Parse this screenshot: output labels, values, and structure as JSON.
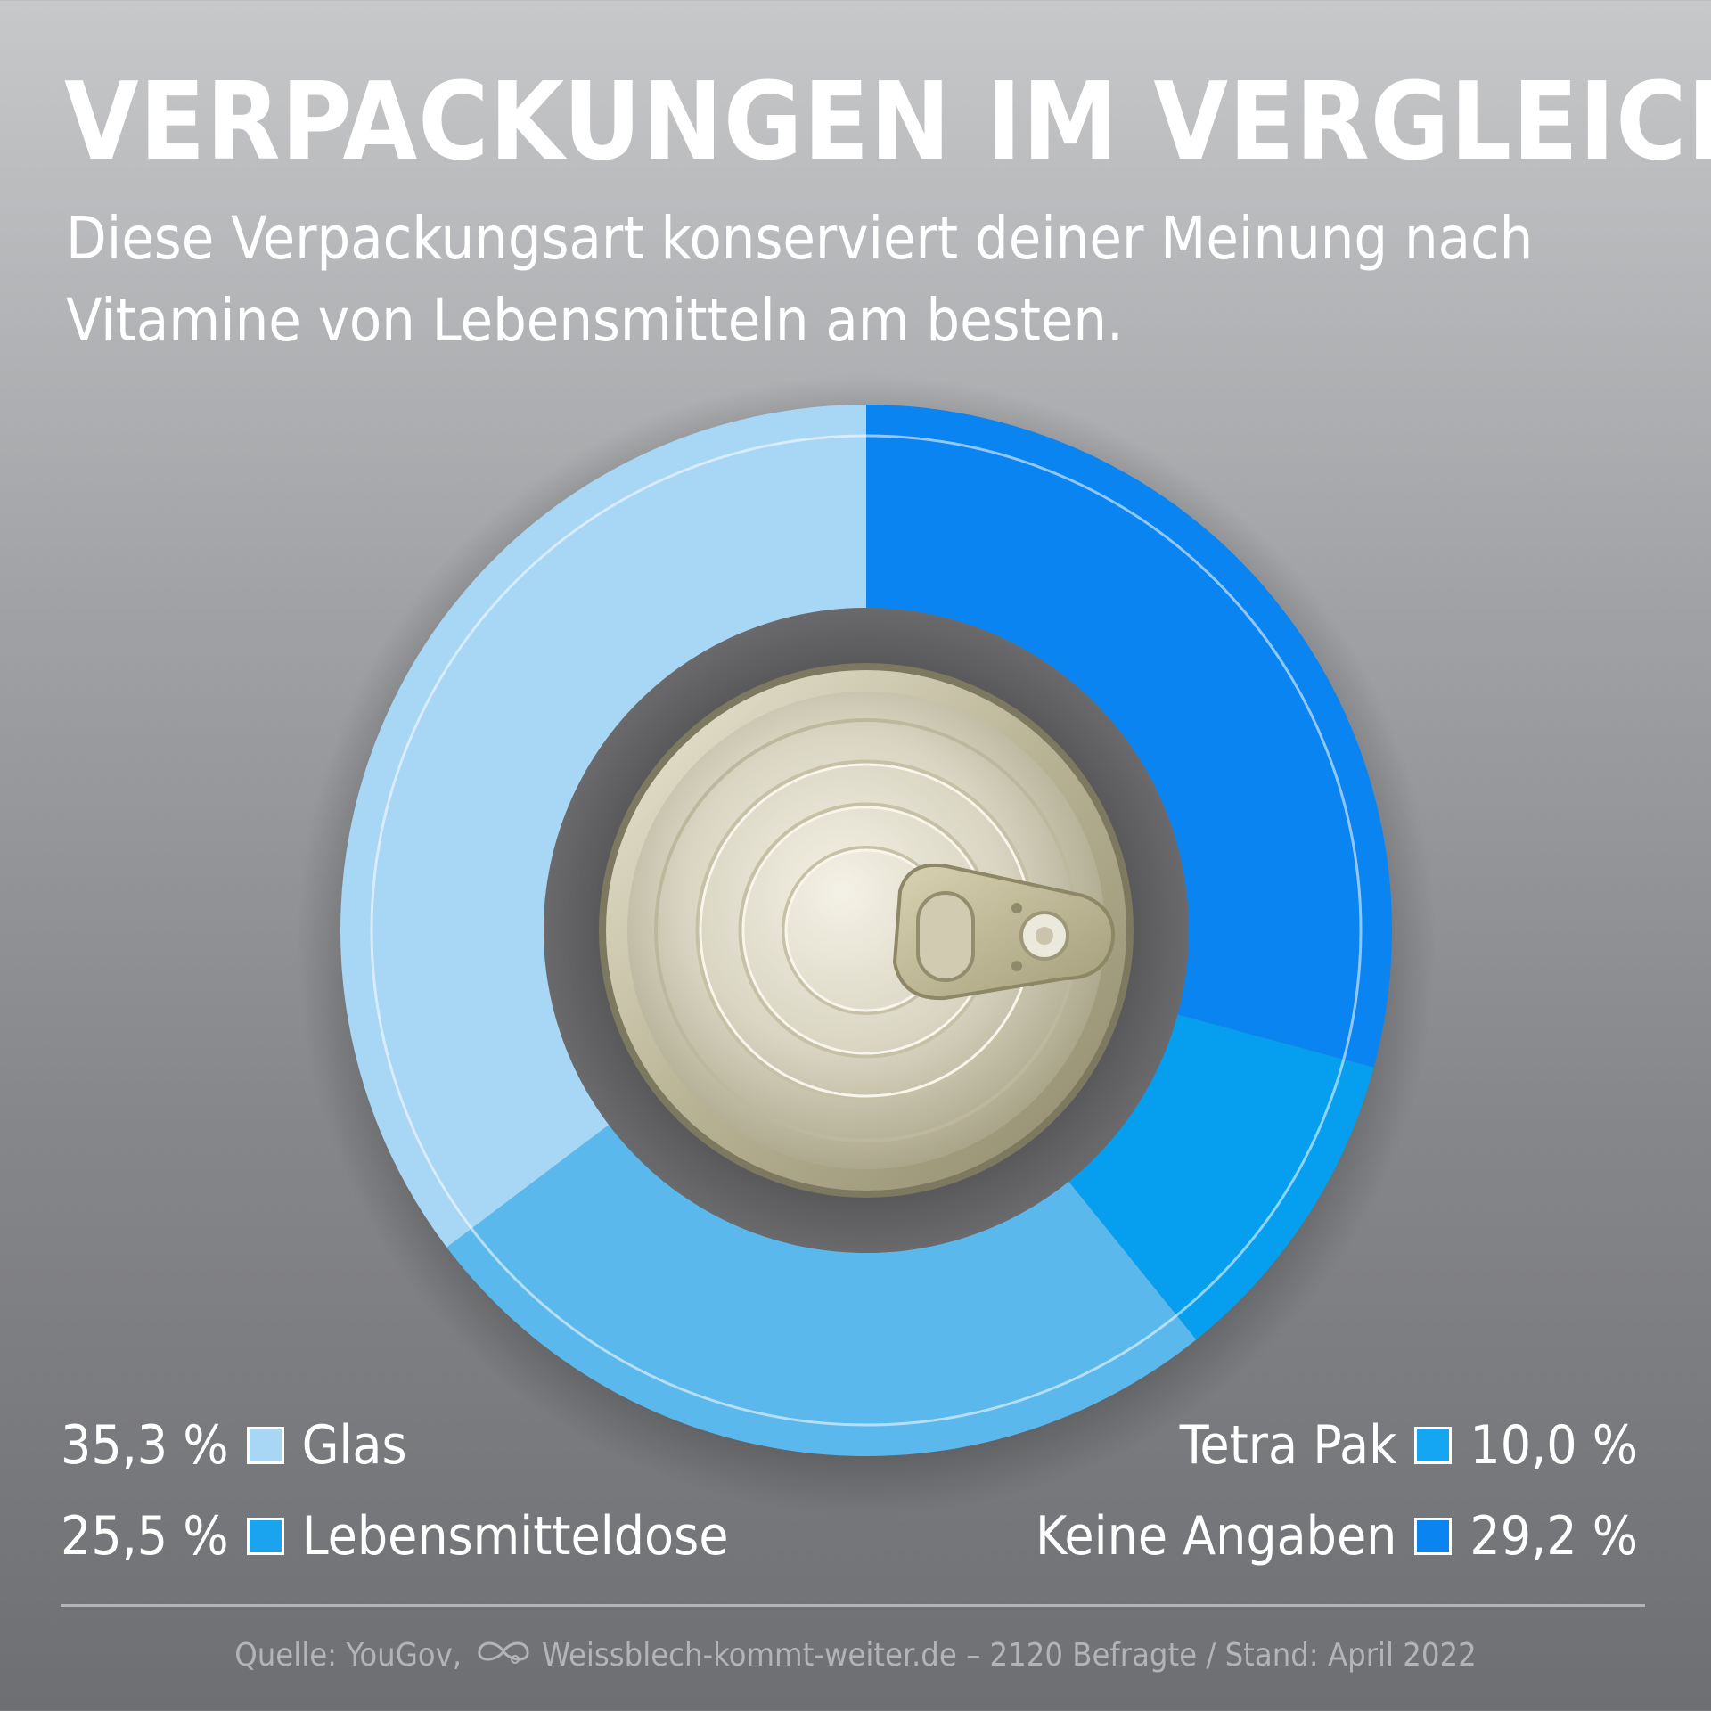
{
  "header": {
    "title": "VERPACKUNGEN IM VERGLEICH",
    "subtitle": "Diese Verpackungsart konserviert deiner Meinung nach Vitamine von Lebensmitteln am besten."
  },
  "chart_data": {
    "type": "pie",
    "variant": "donut",
    "slices": [
      {
        "label": "Keine Angaben",
        "value": 29.2,
        "value_label": "29,2 %",
        "color": "#0a84f0"
      },
      {
        "label": "Tetra Pak",
        "value": 10.0,
        "value_label": "10,0 %",
        "color": "#069ff0"
      },
      {
        "label": "Lebensmitteldose",
        "value": 25.5,
        "value_label": "25,5 %",
        "color": "#5ab8ec"
      },
      {
        "label": "Glas",
        "value": 35.3,
        "value_label": "35,3 %",
        "color": "#a8d6f5"
      }
    ],
    "start": "12 o'clock, clockwise",
    "center_image": "tin-can-lid"
  },
  "legend": {
    "left": [
      {
        "pct": "35,3 %",
        "label": "Glas",
        "color": "#a8d6f5"
      },
      {
        "pct": "25,5 %",
        "label": "Lebensmitteldose",
        "color": "#1aa3ee"
      }
    ],
    "right": [
      {
        "label": "Tetra Pak",
        "pct": "10,0 %",
        "color": "#14a6f2"
      },
      {
        "label": "Keine Angaben",
        "pct": "29,2 %",
        "color": "#0a84f0"
      }
    ]
  },
  "footer": {
    "source_prefix": "Quelle: YouGov,",
    "source_logo": "infinity-loop-icon",
    "source_suffix": "Weissblech-kommt-weiter.de – 2120 Befragte / Stand: April 2022"
  }
}
